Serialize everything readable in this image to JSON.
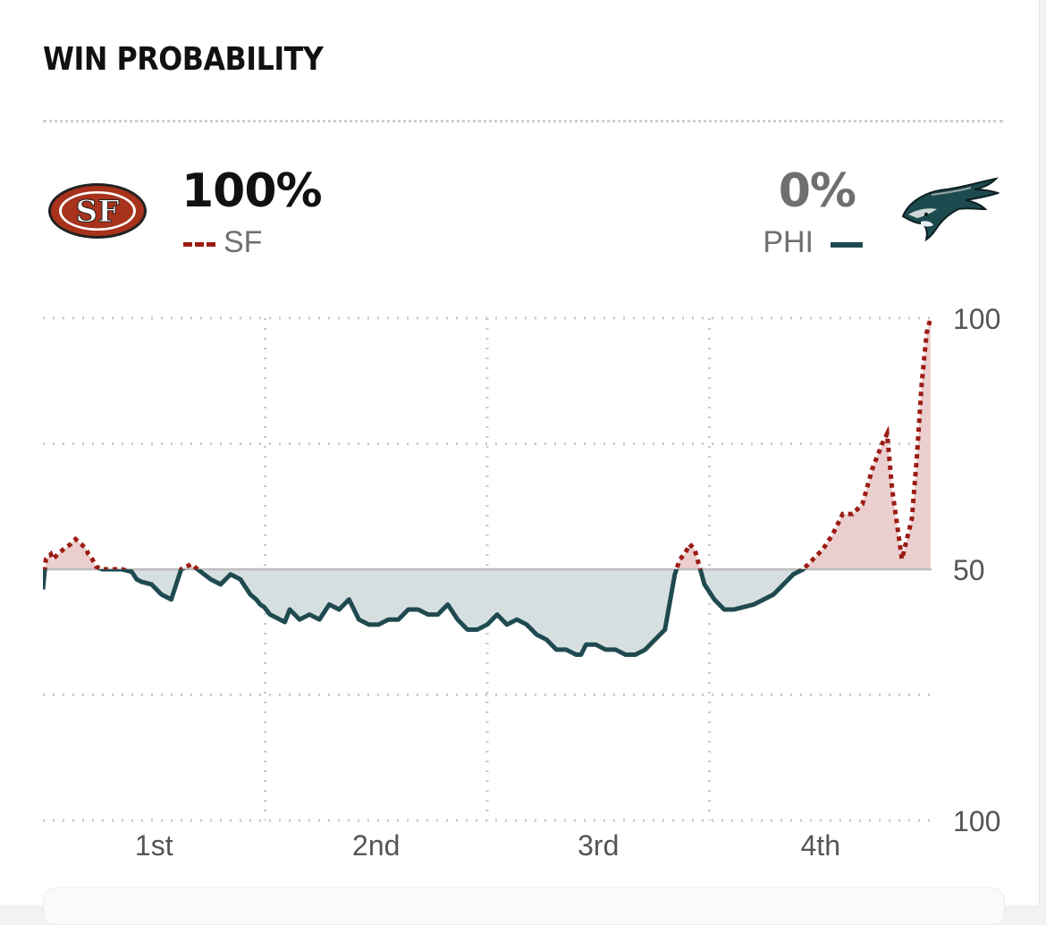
{
  "header": {
    "title": "WIN PROBABILITY"
  },
  "teams": {
    "home": {
      "abbr": "SF",
      "pct": "100%",
      "color": "#9c1c14",
      "logo": "sf-49ers-logo"
    },
    "away": {
      "abbr": "PHI",
      "pct": "0%",
      "color": "#1f4a50",
      "logo": "eagles-logo"
    }
  },
  "chart_data": {
    "type": "area",
    "xlabel": "",
    "ylabel": "",
    "x_ticks": [
      "1st",
      "2nd",
      "3rd",
      "4th"
    ],
    "y_ticks": [
      "100",
      "50",
      "100"
    ],
    "grid": true,
    "baseline": 50,
    "ylim_note": "SF win probability above baseline, PHI below",
    "series": [
      {
        "name": "SF",
        "color": "#9c1c14",
        "style": "dotted",
        "x": [
          0,
          0.3,
          0.8,
          1.0,
          1.5,
          2.1,
          2.8,
          3.3,
          3.9,
          4.4,
          4.6,
          5.0,
          5.4,
          6.0,
          7.0,
          8.0,
          9.0,
          9.5,
          10.0,
          11.0,
          12.0,
          13.0,
          13.5,
          14.0,
          15.0,
          16.0,
          17.0,
          18.0,
          19.0,
          20.0,
          21.0,
          21.6,
          22.0,
          22.4,
          23.0,
          23.5,
          24.0,
          24.5,
          25.0,
          26.0,
          27.0,
          28.0,
          29.0,
          30.0,
          31.0,
          32.0,
          33.0,
          34.0,
          35.0,
          36.0,
          37.0,
          38.0,
          39.0,
          40.0,
          41.0,
          42.0,
          43.0,
          44.0,
          45.0,
          46.0,
          47.0,
          48.0,
          49.0,
          50.0,
          51.0,
          52.0,
          53.0,
          54.0,
          54.5,
          55.0,
          56.0,
          57.0,
          58.0,
          59.0,
          60.0,
          61.0,
          62.0,
          63.0,
          64.0,
          64.5,
          65.0,
          65.5,
          66.0,
          67.0,
          68.0,
          68.5,
          69.0,
          70.0,
          71.0,
          72.0,
          73.0,
          74.0,
          75.0,
          76.0,
          77.0,
          78.0,
          79.0,
          80.0,
          81.0,
          82.0,
          83.0,
          84.0,
          85.0,
          85.5,
          86.0,
          87.0,
          88.0,
          88.5,
          89.0,
          89.5,
          89.9
        ],
        "values": [
          46,
          52,
          53,
          52,
          53,
          54,
          55,
          56,
          55,
          54,
          53,
          52,
          50.5,
          50,
          50,
          50,
          49.5,
          48,
          47.5,
          47,
          45,
          44,
          47,
          50,
          51,
          49.5,
          48,
          47,
          49,
          48,
          45,
          44,
          43,
          42.5,
          41,
          40.5,
          40,
          39.5,
          42,
          40,
          41,
          40,
          43,
          42,
          44,
          40,
          39,
          39,
          40,
          40,
          42,
          42,
          41,
          41,
          43,
          40,
          38,
          38,
          39,
          41,
          39,
          40,
          39,
          37,
          36,
          34,
          34,
          33,
          33,
          35,
          35,
          34,
          34,
          33,
          33,
          34,
          36,
          38,
          49,
          52,
          53,
          55,
          54,
          47,
          44,
          43,
          42,
          42,
          42.5,
          43,
          44,
          45,
          47,
          49,
          50,
          52,
          54,
          57,
          61,
          61,
          63,
          70,
          75,
          77,
          66,
          52,
          60,
          72,
          87,
          97,
          100
        ]
      },
      {
        "name": "PHI",
        "color": "#1f4a50",
        "style": "solid"
      }
    ]
  }
}
